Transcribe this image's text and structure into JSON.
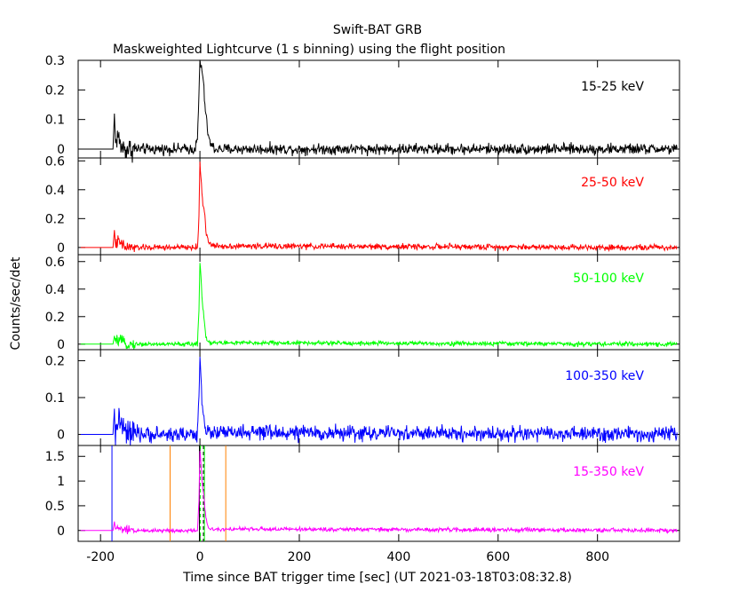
{
  "figure": {
    "title": "Swift-BAT GRB",
    "subtitle": "Maskweighted Lightcurve (1 s binning) using the flight position",
    "ylabel": "Counts/sec/det",
    "xlabel": "Time since BAT trigger time [sec] (UT 2021-03-18T03:08:32.8)"
  },
  "colors": {
    "black": "#000000",
    "red": "#ff0000",
    "green": "#00ff00",
    "blue": "#0000ff",
    "magenta": "#ff00ff",
    "orange": "#ff8000",
    "axis": "#000000"
  },
  "chart_data": [
    {
      "type": "line",
      "band": "15-25 keV",
      "color": "#000000",
      "xlim": [
        -245,
        965
      ],
      "ylim": [
        -0.03,
        0.3
      ],
      "yticks": [
        0,
        0.1,
        0.2,
        0.3
      ],
      "ytick_labels": [
        "0",
        "0.1",
        "0.2",
        "0.3"
      ],
      "pre_slew_end": -170,
      "noise_sigma": 0.009,
      "series": [
        {
          "x": [
            -240,
            -175,
            -172,
            -170,
            -165,
            -160,
            -150,
            -10,
            -5,
            -2,
            0,
            2,
            4,
            6,
            8,
            10,
            12,
            14,
            16,
            18,
            20,
            25,
            30,
            960
          ],
          "y": [
            0,
            0,
            0.12,
            0.02,
            0.05,
            0.01,
            0,
            0,
            0.03,
            0.18,
            0.3,
            0.28,
            0.27,
            0.24,
            0.2,
            0.15,
            0.12,
            0.08,
            0.06,
            0.04,
            0.02,
            0.01,
            0,
            0
          ]
        }
      ]
    },
    {
      "type": "line",
      "band": "25-50 keV",
      "color": "#ff0000",
      "xlim": [
        -245,
        965
      ],
      "ylim": [
        -0.05,
        0.62
      ],
      "yticks": [
        0,
        0.2,
        0.4,
        0.6
      ],
      "ytick_labels": [
        "0",
        "0.2",
        "0.4",
        "0.6"
      ],
      "pre_slew_end": -170,
      "noise_sigma": 0.01,
      "series": [
        {
          "x": [
            -240,
            -175,
            -172,
            -170,
            -165,
            -150,
            -5,
            -2,
            0,
            2,
            4,
            6,
            8,
            10,
            12,
            15,
            20,
            25,
            960
          ],
          "y": [
            0,
            0,
            0.12,
            0.02,
            0.04,
            0,
            0,
            0.2,
            0.58,
            0.5,
            0.38,
            0.3,
            0.28,
            0.22,
            0.12,
            0.06,
            0.03,
            0.01,
            0
          ]
        }
      ]
    },
    {
      "type": "line",
      "band": "50-100 keV",
      "color": "#00ff00",
      "xlim": [
        -245,
        965
      ],
      "ylim": [
        -0.04,
        0.65
      ],
      "yticks": [
        0,
        0.2,
        0.4,
        0.6
      ],
      "ytick_labels": [
        "0",
        "0.2",
        "0.4",
        "0.6"
      ],
      "pre_slew_end": -170,
      "noise_sigma": 0.008,
      "series": [
        {
          "x": [
            -240,
            -175,
            -172,
            -170,
            -160,
            -150,
            -5,
            -2,
            0,
            2,
            4,
            6,
            8,
            10,
            12,
            15,
            20,
            960
          ],
          "y": [
            0,
            0,
            0.06,
            0.02,
            0.03,
            0,
            0,
            0.25,
            0.6,
            0.5,
            0.35,
            0.26,
            0.2,
            0.12,
            0.06,
            0.03,
            0.01,
            0
          ]
        }
      ]
    },
    {
      "type": "line",
      "band": "100-350 keV",
      "color": "#0000ff",
      "xlim": [
        -245,
        965
      ],
      "ylim": [
        -0.03,
        0.23
      ],
      "yticks": [
        0,
        0.1,
        0.2
      ],
      "ytick_labels": [
        "0",
        "0.1",
        "0.2"
      ],
      "pre_slew_end": -170,
      "noise_sigma": 0.01,
      "series": [
        {
          "x": [
            -240,
            -175,
            -172,
            -170,
            -165,
            -150,
            -5,
            -2,
            0,
            2,
            4,
            6,
            8,
            10,
            12,
            15,
            960
          ],
          "y": [
            0,
            0,
            0.07,
            -0.03,
            0.05,
            0,
            0,
            0.1,
            0.21,
            0.17,
            0.1,
            0.06,
            0.05,
            0.03,
            0.01,
            0.005,
            0
          ]
        }
      ]
    },
    {
      "type": "line",
      "band": "15-350 keV",
      "color": "#ff00ff",
      "xlim": [
        -245,
        965
      ],
      "ylim": [
        -0.22,
        1.72
      ],
      "yticks": [
        0,
        0.5,
        1,
        1.5
      ],
      "ytick_labels": [
        "0",
        "0.5",
        "1",
        "1.5"
      ],
      "xticks": [
        -200,
        0,
        200,
        400,
        600,
        800
      ],
      "xtick_labels": [
        "-200",
        "0",
        "200",
        "400",
        "600",
        "800"
      ],
      "pre_slew_end": -170,
      "noise_sigma": 0.02,
      "vlines": [
        {
          "x": -177,
          "color": "#0000ff",
          "dash": false
        },
        {
          "x": -60,
          "color": "#ff8000",
          "dash": false
        },
        {
          "x": 52,
          "color": "#ff8000",
          "dash": false
        },
        {
          "x": -1,
          "color": "#000000",
          "dash": false
        },
        {
          "x": 1,
          "color": "#00ff00",
          "dash": true
        },
        {
          "x": 7,
          "color": "#000000",
          "dash": true
        },
        {
          "x": 9,
          "color": "#00ff00",
          "dash": false
        }
      ],
      "series": [
        {
          "x": [
            -240,
            -175,
            -172,
            -170,
            -165,
            -150,
            -5,
            -2,
            0,
            2,
            4,
            6,
            8,
            10,
            12,
            15,
            20,
            960
          ],
          "y": [
            0,
            0,
            0.18,
            0.02,
            0.06,
            0,
            0,
            0.6,
            1.62,
            1.4,
            1.05,
            0.85,
            0.7,
            0.45,
            0.25,
            0.1,
            0.03,
            0
          ]
        }
      ]
    }
  ]
}
